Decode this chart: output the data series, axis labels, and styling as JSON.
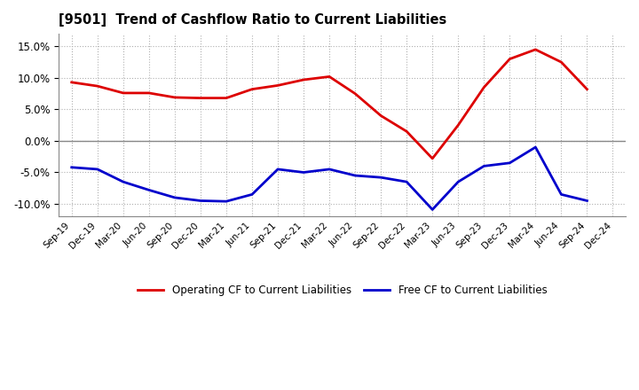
{
  "title": "[9501]  Trend of Cashflow Ratio to Current Liabilities",
  "x_labels": [
    "Sep-19",
    "Dec-19",
    "Mar-20",
    "Jun-20",
    "Sep-20",
    "Dec-20",
    "Mar-21",
    "Jun-21",
    "Sep-21",
    "Dec-21",
    "Mar-22",
    "Jun-22",
    "Sep-22",
    "Dec-22",
    "Mar-23",
    "Jun-23",
    "Sep-23",
    "Dec-23",
    "Mar-24",
    "Jun-24",
    "Sep-24",
    "Dec-24"
  ],
  "operating_cf": [
    9.3,
    8.7,
    7.6,
    7.6,
    6.9,
    6.8,
    6.8,
    8.2,
    8.8,
    9.7,
    10.2,
    7.5,
    4.0,
    1.5,
    -2.8,
    2.5,
    8.5,
    13.0,
    14.5,
    12.5,
    8.2,
    null
  ],
  "free_cf": [
    -4.2,
    -4.5,
    -6.5,
    -7.8,
    -9.0,
    -9.5,
    -9.6,
    -8.5,
    -4.5,
    -5.0,
    -4.5,
    -5.5,
    -5.8,
    -6.5,
    -10.9,
    -6.5,
    -4.0,
    -3.5,
    -1.0,
    -8.5,
    -9.5,
    null
  ],
  "operating_color": "#dd0000",
  "free_color": "#0000cc",
  "background_color": "#ffffff",
  "plot_bg_color": "#ffffff",
  "grid_color": "#b0b0b0",
  "ylim": [
    -12.0,
    17.0
  ],
  "yticks": [
    -10.0,
    -5.0,
    0.0,
    5.0,
    10.0,
    15.0
  ],
  "zero_line_color": "#888888",
  "legend_op_label": "Operating CF to Current Liabilities",
  "legend_free_label": "Free CF to Current Liabilities",
  "line_width": 2.0
}
